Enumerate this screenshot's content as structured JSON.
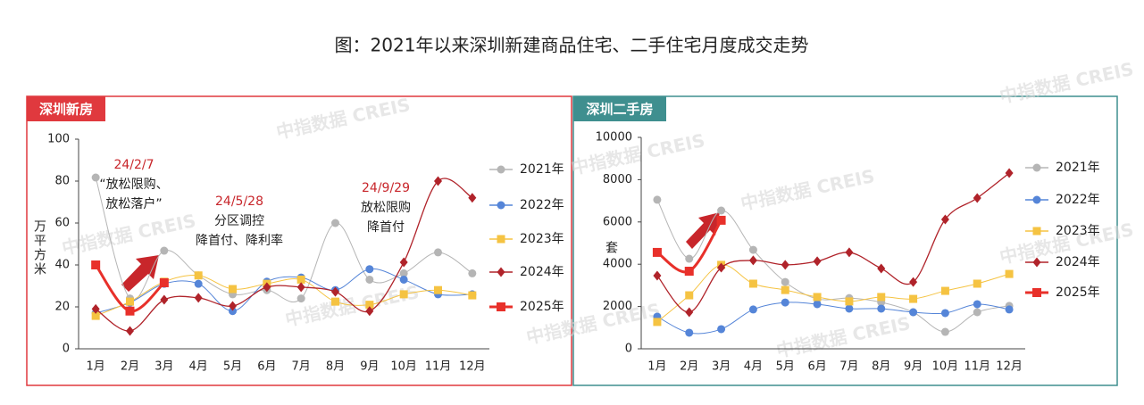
{
  "title": "图：2021年以来深圳新建商品住宅、二手住宅月度成交走势",
  "watermark": "中指数据 CREIS",
  "chart_data": [
    {
      "type": "line",
      "label": "深圳新房",
      "ylabel": "万平方米",
      "categories": [
        "1月",
        "2月",
        "3月",
        "4月",
        "5月",
        "6月",
        "7月",
        "8月",
        "9月",
        "10月",
        "11月",
        "12月"
      ],
      "ylim": [
        0,
        100
      ],
      "yticks": [
        0,
        20,
        40,
        60,
        80,
        100
      ],
      "series": [
        {
          "name": "2021年",
          "color": "#b5b5b5",
          "marker": "circle",
          "values": [
            81.7,
            24,
            46.8,
            35,
            26,
            28,
            24,
            60,
            33,
            36,
            46,
            36
          ]
        },
        {
          "name": "2022年",
          "color": "#5585d8",
          "marker": "circle",
          "values": [
            17,
            22,
            31,
            31,
            18,
            32,
            34,
            28,
            38,
            33,
            26,
            26
          ]
        },
        {
          "name": "2023年",
          "color": "#f5c342",
          "marker": "square",
          "values": [
            15.7,
            22.5,
            32,
            35,
            28.5,
            31,
            33,
            22.5,
            21,
            26,
            28,
            25.5
          ]
        },
        {
          "name": "2024年",
          "color": "#b0232a",
          "marker": "diamond",
          "values": [
            19,
            8.5,
            23.4,
            24.3,
            20.4,
            29.4,
            29.4,
            27.2,
            18,
            41.3,
            80,
            72
          ]
        },
        {
          "name": "2025年",
          "color": "#e8302a",
          "marker": "square",
          "values": [
            40,
            18,
            31.5,
            null,
            null,
            null,
            null,
            null,
            null,
            null,
            null,
            null
          ]
        }
      ],
      "annotations": [
        {
          "date": "24/2/7",
          "lines": [
            "“放松限购、",
            "放松落户”"
          ]
        },
        {
          "date": "24/5/28",
          "lines": [
            "分区调控",
            "降首付、降利率"
          ]
        },
        {
          "date": "24/9/29",
          "lines": [
            "放松限购",
            "降首付"
          ]
        }
      ]
    },
    {
      "type": "line",
      "label": "深圳二手房",
      "ylabel": "套",
      "categories": [
        "1月",
        "2月",
        "3月",
        "4月",
        "5月",
        "6月",
        "7月",
        "8月",
        "9月",
        "10月",
        "11月",
        "12月"
      ],
      "ylim": [
        0,
        10000
      ],
      "yticks": [
        0,
        2000,
        4000,
        6000,
        8000,
        10000
      ],
      "series": [
        {
          "name": "2021年",
          "color": "#b5b5b5",
          "marker": "circle",
          "values": [
            7050,
            4260,
            6540,
            4680,
            3160,
            2360,
            2400,
            2200,
            1730,
            800,
            1730,
            2030
          ]
        },
        {
          "name": "2022年",
          "color": "#5585d8",
          "marker": "circle",
          "values": [
            1520,
            760,
            930,
            1860,
            2190,
            2110,
            1900,
            1900,
            1730,
            1690,
            2110,
            1860
          ]
        },
        {
          "name": "2023年",
          "color": "#f5c342",
          "marker": "square",
          "values": [
            1270,
            2530,
            3970,
            3080,
            2780,
            2450,
            2240,
            2450,
            2360,
            2740,
            3080,
            3540
          ]
        },
        {
          "name": "2024年",
          "color": "#b0232a",
          "marker": "diamond",
          "values": [
            3460,
            1730,
            3840,
            4180,
            3970,
            4140,
            4560,
            3800,
            3160,
            6120,
            7130,
            8310
          ]
        },
        {
          "name": "2025年",
          "color": "#e8302a",
          "marker": "square",
          "values": [
            4560,
            3670,
            6080,
            null,
            null,
            null,
            null,
            null,
            null,
            null,
            null,
            null
          ]
        }
      ]
    }
  ]
}
